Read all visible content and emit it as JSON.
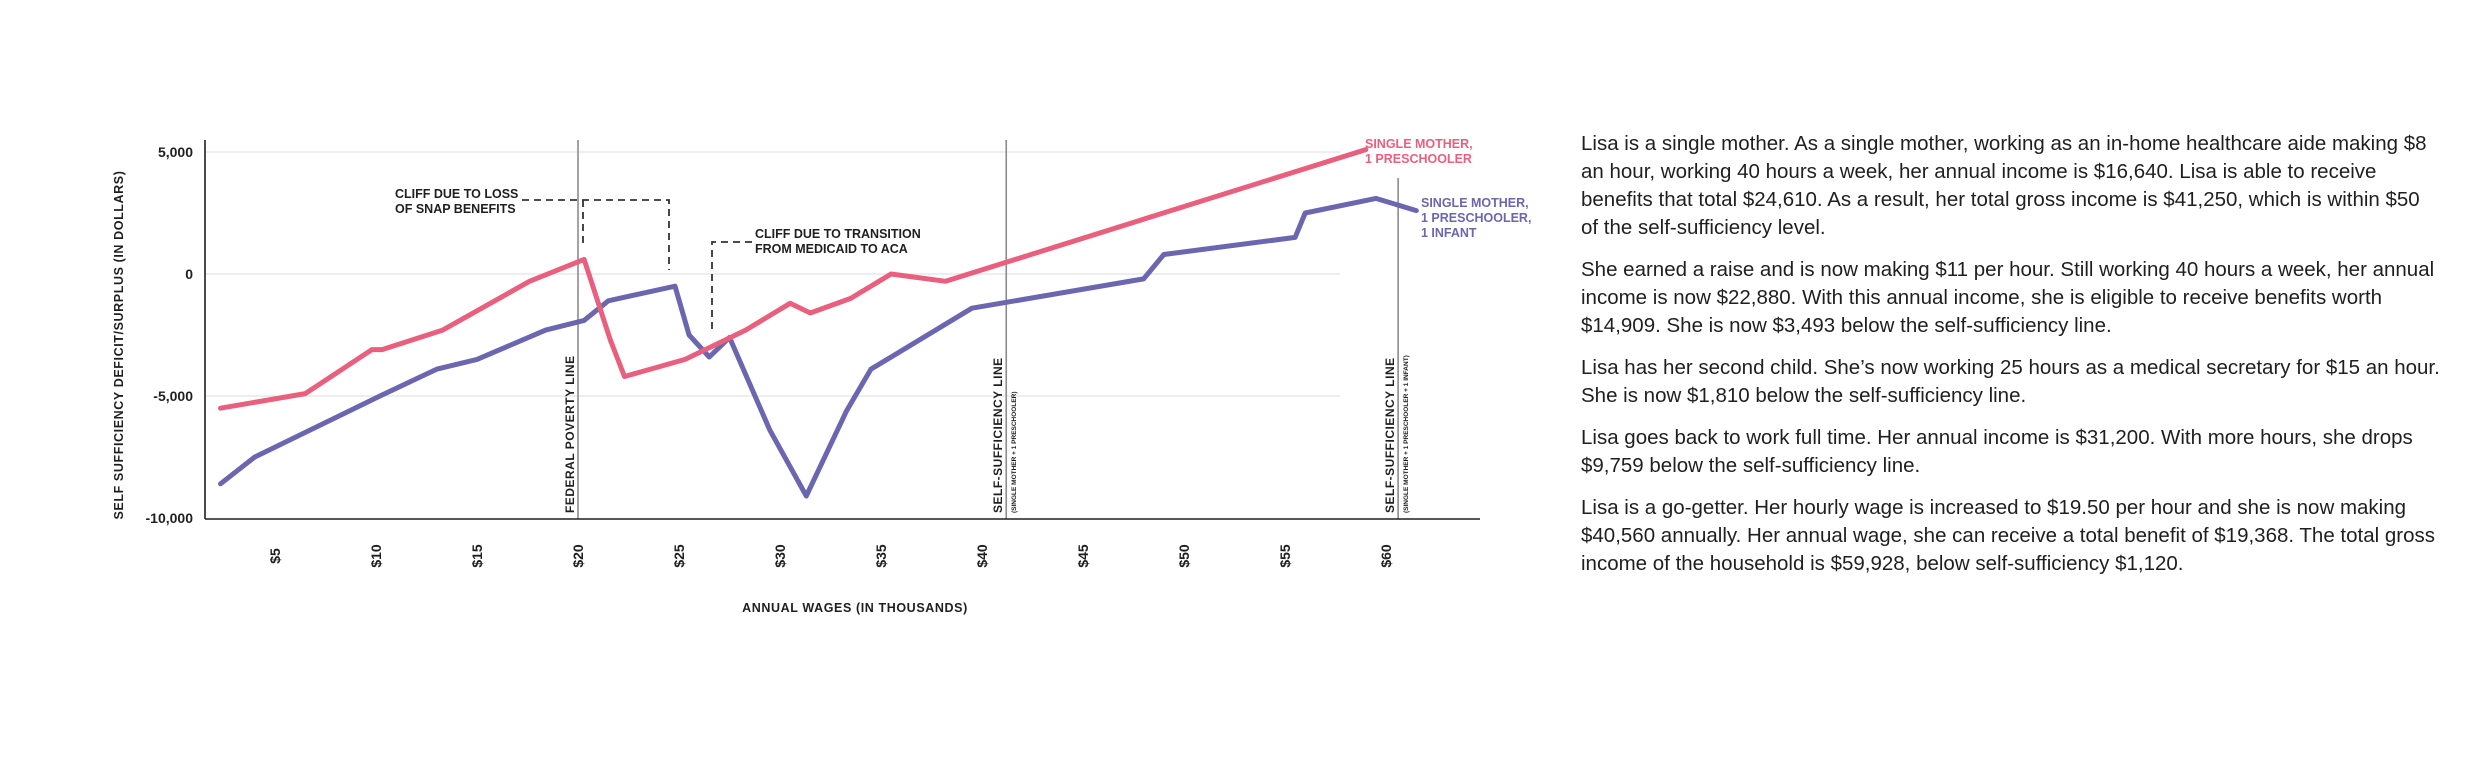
{
  "chart_data": {
    "type": "line",
    "title": "",
    "xlabel": "ANNUAL WAGES (IN THOUSANDS)",
    "ylabel": "SELF SUFFICIENCY DEFICIT/SURPLUS (IN DOLLARS)",
    "xlim": [
      1.8,
      65
    ],
    "ylim": [
      -10000,
      5500
    ],
    "x_ticks": [
      5,
      10,
      15,
      20,
      25,
      30,
      35,
      40,
      45,
      50,
      55,
      60
    ],
    "x_tick_labels": [
      "$5",
      "$10",
      "$15",
      "$20",
      "$25",
      "$30",
      "$35",
      "$40",
      "$45",
      "$50",
      "$55",
      "$60"
    ],
    "y_ticks": [
      5000,
      0,
      -5000,
      -10000
    ],
    "y_tick_labels": [
      "5,000",
      "0",
      "-5,000",
      "-10,000"
    ],
    "grid": "horizontal",
    "series": [
      {
        "name": "SINGLE MOTHER, 1 PRESCHOOLER",
        "color": "#E8607E",
        "points": [
          [
            2.3,
            -5500
          ],
          [
            6.5,
            -4900
          ],
          [
            9.8,
            -3100
          ],
          [
            10.3,
            -3100
          ],
          [
            13.3,
            -2300
          ],
          [
            17.6,
            -300
          ],
          [
            20.3,
            600
          ],
          [
            21.6,
            -2700
          ],
          [
            22.3,
            -4200
          ],
          [
            25.3,
            -3500
          ],
          [
            28.3,
            -2300
          ],
          [
            30.5,
            -1200
          ],
          [
            31.5,
            -1600
          ],
          [
            33.5,
            -1000
          ],
          [
            35.5,
            0
          ],
          [
            38.2,
            -300
          ],
          [
            59,
            5100
          ]
        ]
      },
      {
        "name": "SINGLE MOTHER, 1 PRESCHOOLER, 1 INFANT",
        "color": "#6B66B0",
        "points": [
          [
            2.3,
            -8600
          ],
          [
            4.0,
            -7500
          ],
          [
            10.2,
            -5000
          ],
          [
            13.0,
            -3900
          ],
          [
            15.0,
            -3500
          ],
          [
            18.4,
            -2300
          ],
          [
            20.3,
            -1900
          ],
          [
            21.5,
            -1100
          ],
          [
            24.8,
            -500
          ],
          [
            25.5,
            -2500
          ],
          [
            26.5,
            -3400
          ],
          [
            27.5,
            -2600
          ],
          [
            29.5,
            -6400
          ],
          [
            31.3,
            -9100
          ],
          [
            33.3,
            -5600
          ],
          [
            34.5,
            -3900
          ],
          [
            39.5,
            -1400
          ],
          [
            48.0,
            -200
          ],
          [
            49.0,
            800
          ],
          [
            55.5,
            1500
          ],
          [
            56.0,
            2500
          ],
          [
            59.5,
            3100
          ],
          [
            61.5,
            2600
          ]
        ]
      }
    ],
    "reference_lines": [
      {
        "x": 20.0,
        "label": "FEDERAL POVERTY LINE",
        "sublabel": ""
      },
      {
        "x": 41.2,
        "label": "SELF-SUFFICIENCY LINE",
        "sublabel": "(SINGLE MOTHER + 1 PRESCHOOLER)"
      },
      {
        "x": 60.6,
        "label": "SELF-SUFFICIENCY LINE",
        "sublabel": "(SINGLE MOTHER + 1 PRESCHOOLER + 1 INFANT)"
      }
    ],
    "annotations": [
      {
        "lines": [
          "CLIFF DUE TO LOSS",
          "OF SNAP BENEFITS"
        ]
      },
      {
        "lines": [
          "CLIFF DUE TO TRANSITION",
          "FROM MEDICAID TO ACA"
        ]
      }
    ],
    "series_labels": [
      {
        "lines": [
          "SINGLE MOTHER,",
          "1 PRESCHOOLER"
        ]
      },
      {
        "lines": [
          "SINGLE MOTHER,",
          "1 PRESCHOOLER,",
          "1 INFANT"
        ]
      }
    ]
  },
  "colors": {
    "pink": "#E8607E",
    "purple": "#6B66B0",
    "axis": "#1f1f1f",
    "grid": "#e3e3e3",
    "ref_line": "#8c8c8c",
    "dashed": "#333333"
  },
  "narrative": [
    "Lisa is a single mother. As a single mother, working as an in-home healthcare aide making $8 an hour, working 40 hours a week, her annual income is $16,640. Lisa is able to receive benefits that total $24,610. As a result, her total gross income is $41,250, which is within $50 of the self-sufficiency level.",
    "She earned a raise and is now making $11 per hour. Still working 40 hours a week, her annual income is now $22,880. With this annual income, she is eligible to receive benefits worth $14,909. She is now $3,493 below the self-sufficiency line.",
    "Lisa has her second child. She’s now working 25 hours as a medical secretary for $15 an hour. She is now $1,810 below the self-sufficiency line.",
    "Lisa goes back to work full time. Her annual income is $31,200. With more hours, she drops $9,759 below the self-sufficiency line.",
    "Lisa is a go-getter. Her hourly wage is increased to $19.50 per hour and she is now making $40,560 annually. Her annual wage, she can receive a total benefit of $19,368. The total gross income of the household is $59,928, below self-sufficiency $1,120."
  ]
}
